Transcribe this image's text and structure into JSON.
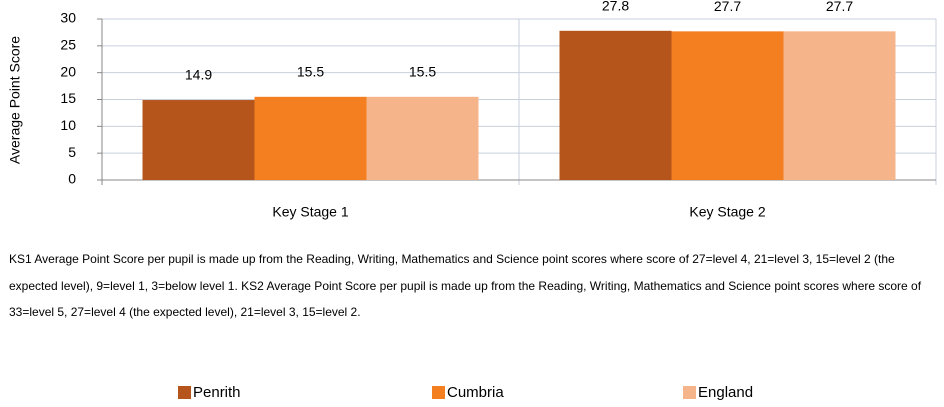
{
  "chart_data": {
    "type": "bar",
    "y_label": "Average Point Score",
    "categories": [
      "Key Stage 1",
      "Key Stage 2"
    ],
    "series": [
      {
        "name": "Penrith",
        "color": "#b5541b",
        "values": [
          14.9,
          27.8
        ]
      },
      {
        "name": "Cumbria",
        "color": "#f47f20",
        "values": [
          15.5,
          27.7
        ]
      },
      {
        "name": "England",
        "color": "#f6b48a",
        "values": [
          15.5,
          27.7
        ]
      }
    ],
    "ylim": [
      0,
      30
    ],
    "yticks": [
      0,
      5,
      10,
      15,
      20,
      25,
      30
    ],
    "grid": true,
    "legend": "bottom",
    "note": "KS1 Average Point Score per pupil is made up from the Reading, Writing, Mathematics and Science point scores where score of 27=level 4, 21=level 3, 15=level 2 (the expected level), 9=level 1, 3=below level 1. KS2 Average Point Score per pupil is made up from the Reading, Writing, Mathematics and Science point scores where score of 33=level 5, 27=level 4 (the expected level), 21=level 3, 15=level 2."
  }
}
